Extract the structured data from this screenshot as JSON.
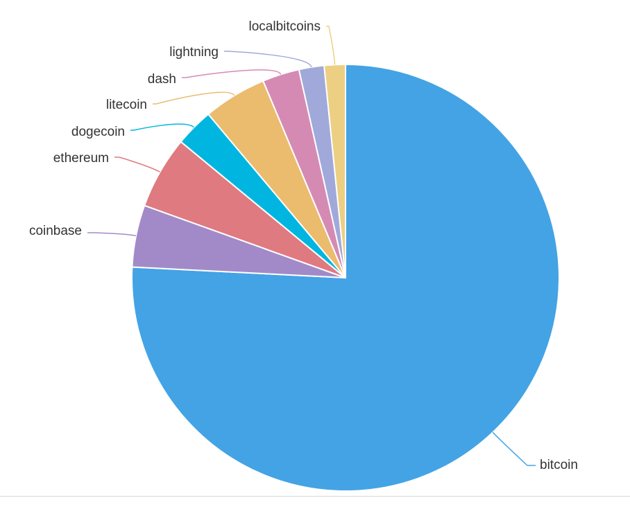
{
  "chart_data": {
    "type": "pie",
    "start_angle_deg": 0,
    "direction": "clockwise",
    "slices": [
      {
        "label": "bitcoin",
        "value": 75.8,
        "color": "#43a3e5"
      },
      {
        "label": "coinbase",
        "value": 4.7,
        "color": "#a28ac9"
      },
      {
        "label": "ethereum",
        "value": 5.5,
        "color": "#df7a80"
      },
      {
        "label": "dogecoin",
        "value": 2.9,
        "color": "#00b6e0"
      },
      {
        "label": "litecoin",
        "value": 4.8,
        "color": "#ebbb6e"
      },
      {
        "label": "dash",
        "value": 2.8,
        "color": "#d58ab4"
      },
      {
        "label": "lightning",
        "value": 1.9,
        "color": "#a0a9d9"
      },
      {
        "label": "localbitcoins",
        "value": 1.6,
        "color": "#eccf82"
      }
    ],
    "legend": "none"
  }
}
